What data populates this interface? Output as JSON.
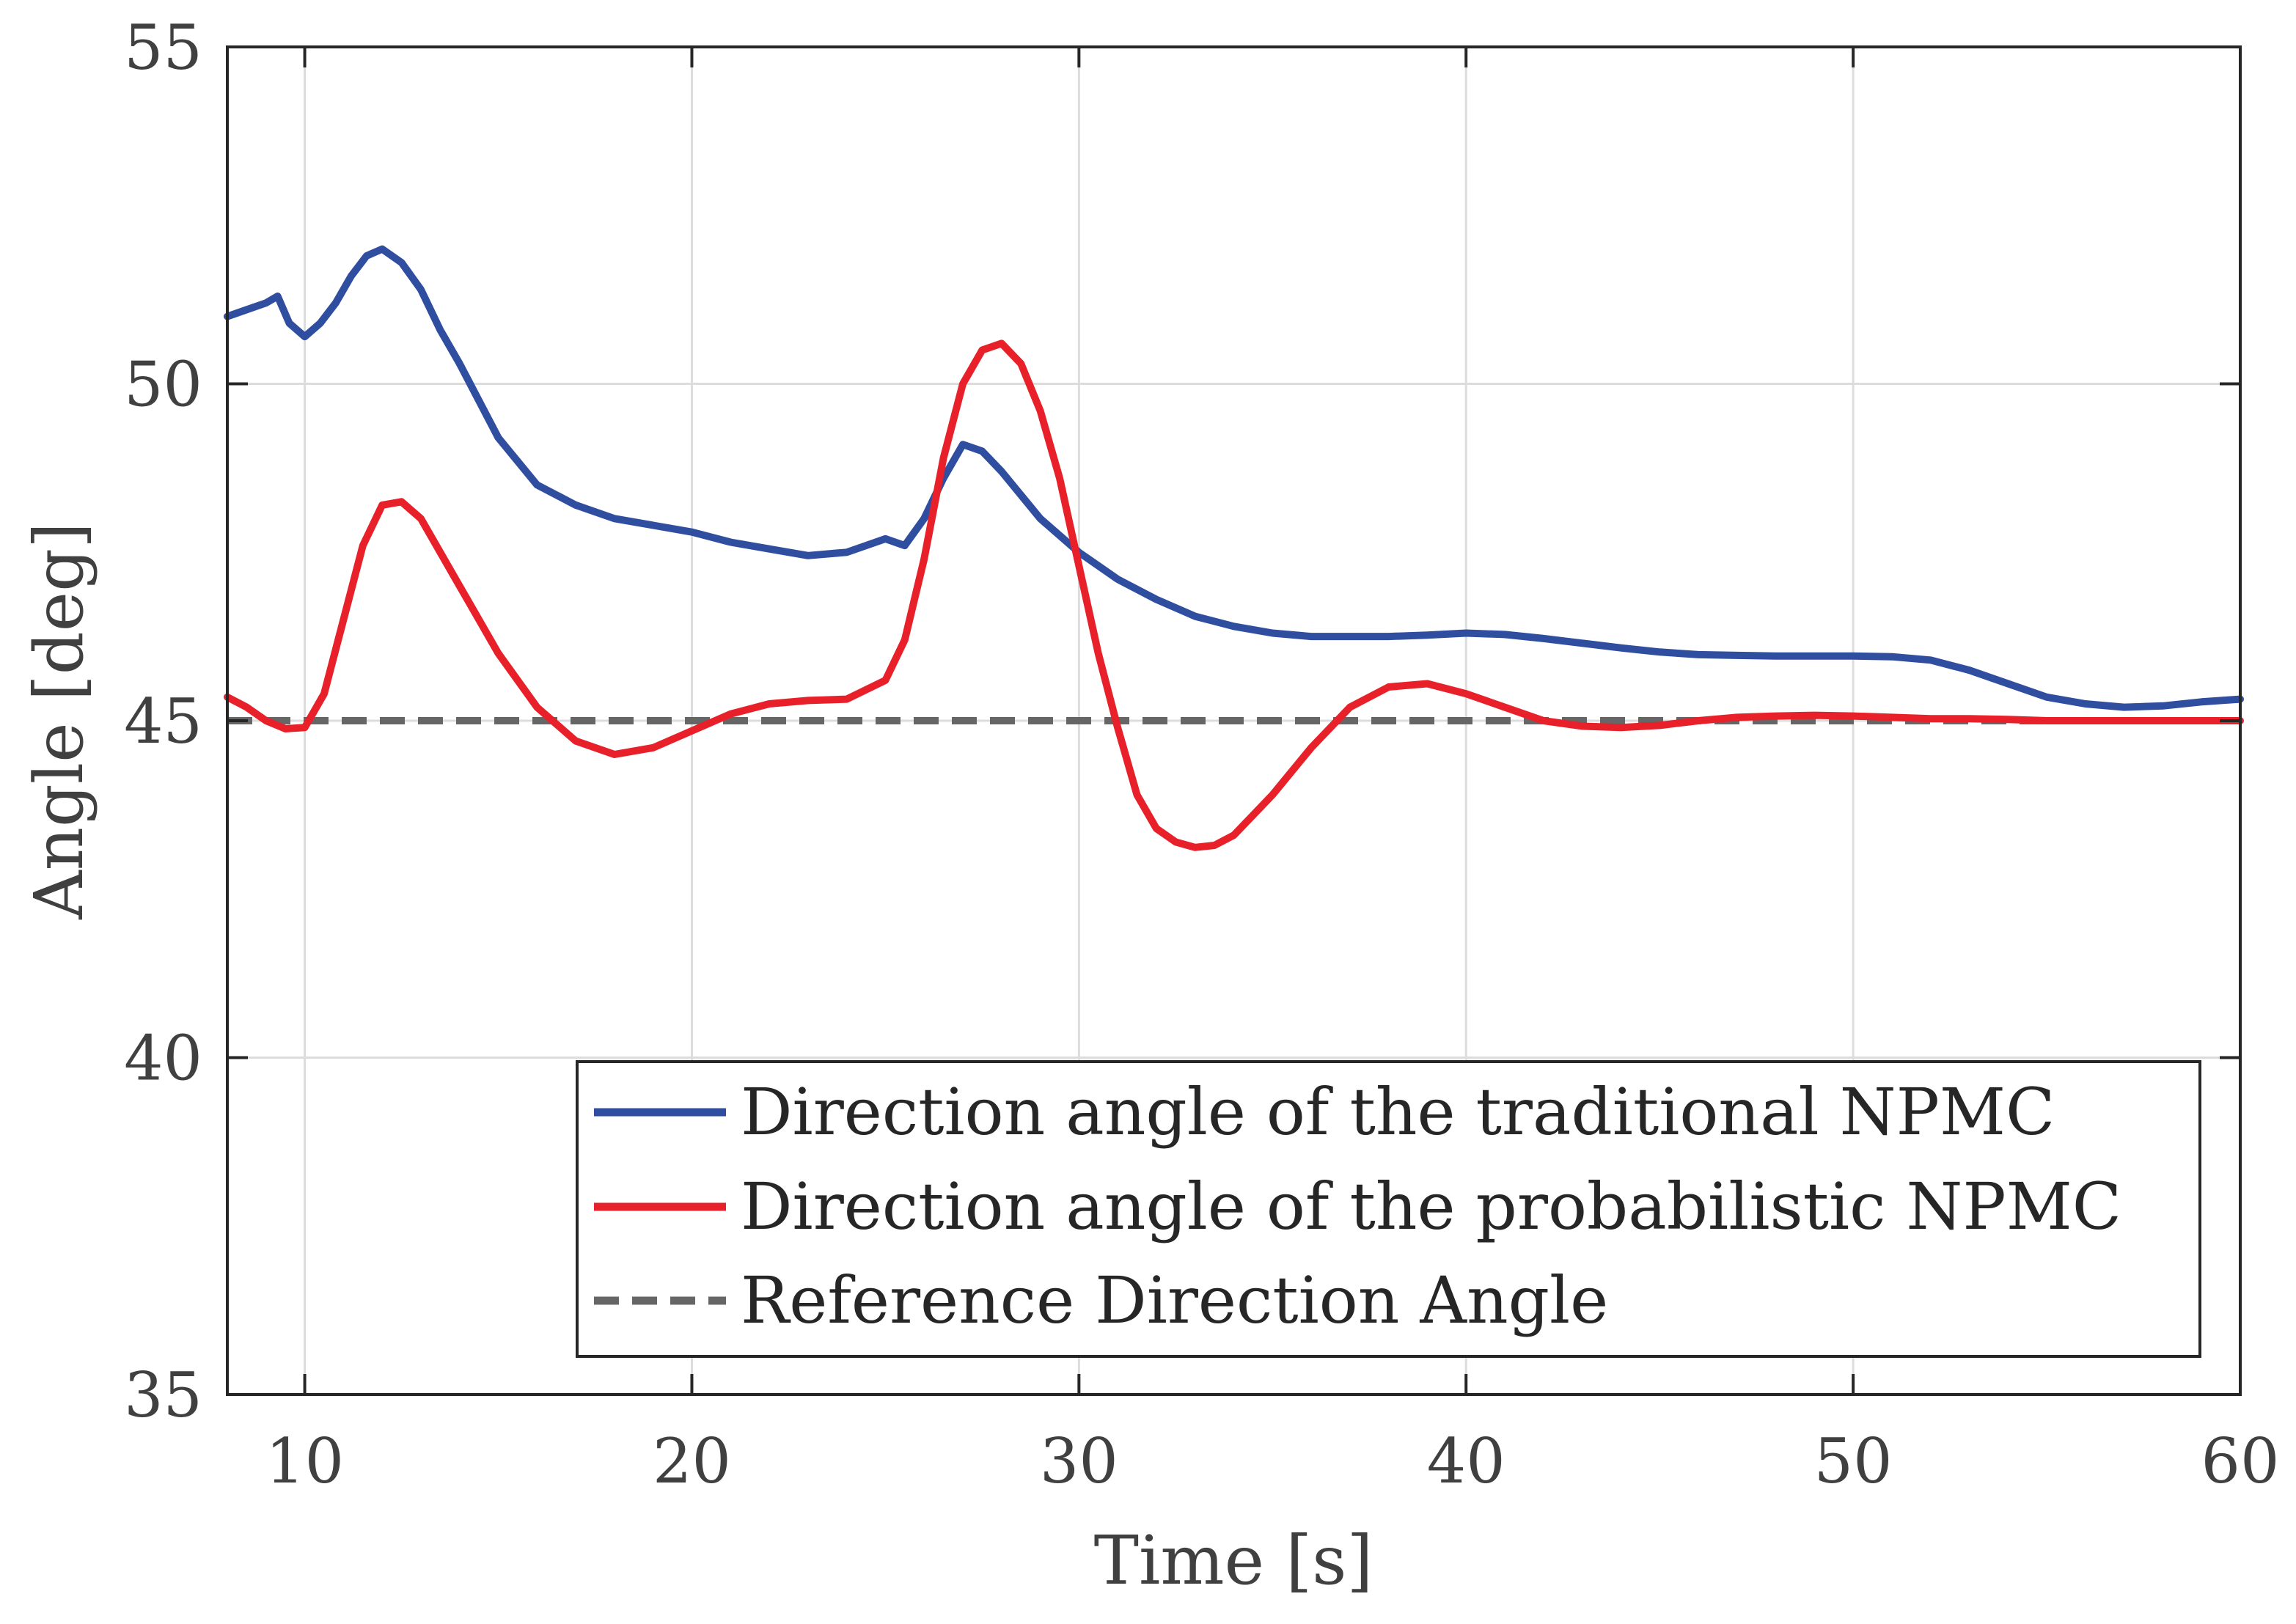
{
  "chart_data": {
    "type": "line",
    "title": "",
    "xlabel": "Time [s]",
    "ylabel": "Angle [deg]",
    "xlim": [
      8,
      60
    ],
    "ylim": [
      35,
      55
    ],
    "xticks": [
      10,
      20,
      30,
      40,
      50,
      60
    ],
    "yticks": [
      35,
      40,
      45,
      50,
      55
    ],
    "xtick_labels": [
      "10",
      "20",
      "30",
      "40",
      "50",
      "60"
    ],
    "ytick_labels": [
      "35",
      "40",
      "45",
      "50",
      "55"
    ],
    "grid": true,
    "legend_position": "bottom-right",
    "series": [
      {
        "name": "Direction angle of the traditional NPMC",
        "color": "#2f4ea0",
        "style": "solid",
        "x": [
          8,
          8.5,
          9,
          9.3,
          9.6,
          10,
          10.4,
          10.8,
          11.2,
          11.6,
          12,
          12.5,
          13,
          13.5,
          14,
          15,
          16,
          17,
          18,
          19,
          20,
          21,
          22,
          23,
          24,
          25,
          25.5,
          26,
          26.5,
          27,
          27.5,
          28,
          29,
          30,
          31,
          32,
          33,
          34,
          35,
          36,
          37,
          38,
          39,
          40,
          41,
          42,
          43,
          44,
          45,
          46,
          47,
          48,
          49,
          50,
          51,
          52,
          53,
          54,
          55,
          56,
          57,
          58,
          59,
          60
        ],
        "y": [
          51.0,
          51.1,
          51.2,
          51.3,
          50.9,
          50.7,
          50.9,
          51.2,
          51.6,
          51.9,
          52.0,
          51.8,
          51.4,
          50.8,
          50.3,
          49.2,
          48.5,
          48.2,
          48.0,
          47.9,
          47.8,
          47.65,
          47.55,
          47.45,
          47.5,
          47.7,
          47.6,
          48.0,
          48.6,
          49.1,
          49.0,
          48.7,
          48.0,
          47.5,
          47.1,
          46.8,
          46.55,
          46.4,
          46.3,
          46.25,
          46.25,
          46.25,
          46.27,
          46.3,
          46.28,
          46.22,
          46.15,
          46.08,
          46.02,
          45.98,
          45.97,
          45.96,
          45.96,
          45.96,
          45.95,
          45.9,
          45.75,
          45.55,
          45.35,
          45.25,
          45.2,
          45.22,
          45.28,
          45.32
        ]
      },
      {
        "name": "Direction angle of the probabilistic NPMC",
        "color": "#e8202a",
        "style": "solid",
        "x": [
          8,
          8.5,
          9,
          9.5,
          10,
          10.5,
          11,
          11.5,
          12,
          12.5,
          13,
          14,
          15,
          16,
          17,
          18,
          19,
          20,
          21,
          22,
          23,
          24,
          25,
          25.5,
          26,
          26.5,
          27,
          27.5,
          28,
          28.5,
          29,
          29.5,
          30,
          30.5,
          31,
          31.5,
          32,
          32.5,
          33,
          33.5,
          34,
          35,
          36,
          37,
          38,
          39,
          40,
          41,
          42,
          43,
          44,
          45,
          46,
          47,
          48,
          49,
          50,
          51,
          52,
          53,
          54,
          55,
          56,
          57,
          58,
          59,
          60
        ],
        "y": [
          45.35,
          45.2,
          45.0,
          44.88,
          44.9,
          45.4,
          46.5,
          47.6,
          48.2,
          48.25,
          48.0,
          47.0,
          46.0,
          45.2,
          44.7,
          44.5,
          44.6,
          44.85,
          45.1,
          45.25,
          45.3,
          45.32,
          45.6,
          46.2,
          47.4,
          48.9,
          50.0,
          50.5,
          50.6,
          50.3,
          49.6,
          48.6,
          47.3,
          46.0,
          44.9,
          43.9,
          43.4,
          43.2,
          43.12,
          43.15,
          43.3,
          43.9,
          44.6,
          45.2,
          45.5,
          45.55,
          45.4,
          45.2,
          45.0,
          44.92,
          44.9,
          44.93,
          45.0,
          45.05,
          45.07,
          45.08,
          45.07,
          45.05,
          45.03,
          45.03,
          45.02,
          45.0,
          45.0,
          45.0,
          45.0,
          45.0,
          45.0
        ]
      },
      {
        "name": "Reference Direction Angle",
        "color": "#666666",
        "style": "dashed",
        "x": [
          8,
          60
        ],
        "y": [
          45,
          45
        ]
      }
    ]
  }
}
